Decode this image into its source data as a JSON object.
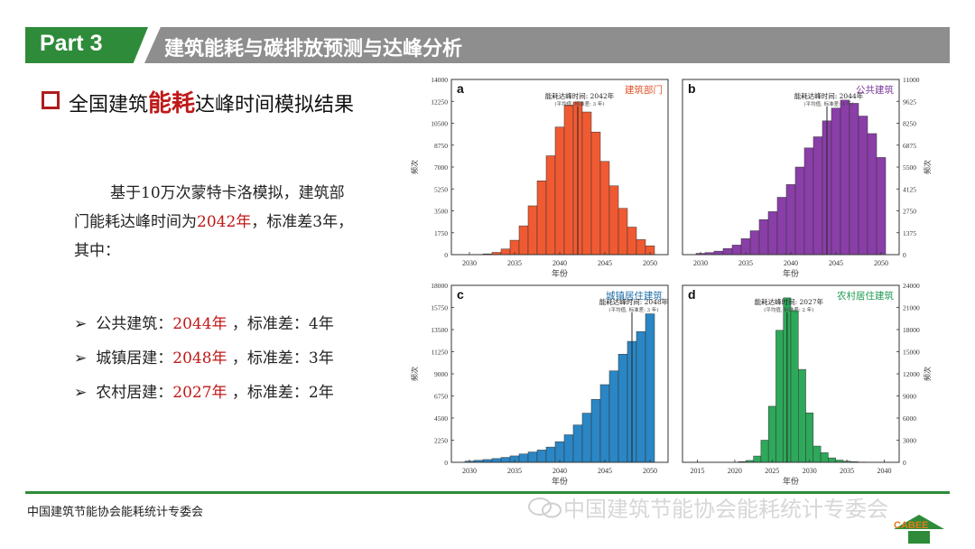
{
  "header": {
    "part": "Part 3",
    "title": "建筑能耗与碳排放预测与达峰分析"
  },
  "subtitle": {
    "prefix": "全国建筑",
    "highlight": "能耗",
    "suffix": "达峰时间模拟结果"
  },
  "paragraph": {
    "line1": "基于10万次蒙特卡洛模拟，建筑部",
    "line2_prefix": "门能耗达峰时间为",
    "line2_year": "2042年",
    "line2_suffix": "，标准差3年，",
    "line3": "其中："
  },
  "bullets": [
    {
      "label": "公共建筑：",
      "year": "2044年",
      "sd": " ，标准差：4年"
    },
    {
      "label": "城镇居建：",
      "year": "2048年",
      "sd": " ，标准差：3年"
    },
    {
      "label": "农村居建：",
      "year": "2027年",
      "sd": " ，标准差：2年"
    }
  ],
  "footer": {
    "org": "中国建筑节能协会能耗统计专委会",
    "watermark": "中国建筑节能协会能耗统计专委会",
    "logo_text": "CABEE"
  },
  "colors": {
    "green": "#2e8b3a",
    "gray": "#8e8e8e",
    "highlight_red": "#c01818"
  },
  "chart_data": [
    {
      "type": "bar",
      "panel": "a",
      "name": "建筑部门",
      "color": "#f05a32",
      "title_color": "#e0522a",
      "xlabel": "年份",
      "ylabel": "频次",
      "yaxis_side": "left",
      "xlim": [
        2028,
        2052
      ],
      "xticks": [
        2030,
        2035,
        2040,
        2045,
        2050
      ],
      "ylim": [
        0,
        14000
      ],
      "yticks": [
        0,
        1750,
        3500,
        5250,
        7000,
        8750,
        10500,
        12250,
        14000
      ],
      "x": [
        2031,
        2032,
        2033,
        2034,
        2035,
        2036,
        2037,
        2038,
        2039,
        2040,
        2041,
        2042,
        2043,
        2044,
        2045,
        2046,
        2047,
        2048,
        2049,
        2050
      ],
      "values": [
        20,
        60,
        180,
        450,
        1150,
        2300,
        3900,
        5900,
        7900,
        10200,
        11950,
        12200,
        11400,
        9800,
        7450,
        5500,
        3700,
        2200,
        1200,
        700
      ],
      "peak_year": 2042,
      "annotation": [
        "能耗达峰时间: 2042年",
        "(平均值, 标准差: 3 年)"
      ]
    },
    {
      "type": "bar",
      "panel": "b",
      "name": "公共建筑",
      "color": "#8a3ea8",
      "title_color": "#7a3a9a",
      "xlabel": "年份",
      "ylabel": "频次",
      "yaxis_side": "right",
      "xlim": [
        2028,
        2052
      ],
      "xticks": [
        2030,
        2035,
        2040,
        2045,
        2050
      ],
      "ylim": [
        0,
        11000
      ],
      "yticks": [
        0,
        1375,
        2750,
        4125,
        5500,
        6875,
        8250,
        9625,
        11000
      ],
      "x": [
        2030,
        2031,
        2032,
        2033,
        2034,
        2035,
        2036,
        2037,
        2038,
        2039,
        2040,
        2041,
        2042,
        2043,
        2044,
        2045,
        2046,
        2047,
        2048,
        2049,
        2050
      ],
      "values": [
        80,
        130,
        220,
        380,
        600,
        1000,
        1500,
        2200,
        2700,
        3600,
        4400,
        5500,
        6700,
        7400,
        8400,
        9200,
        9700,
        9500,
        8700,
        7600,
        6100
      ],
      "peak_year": 2044,
      "annotation": [
        "能耗达峰时间: 2044年",
        "(平均值, 标准差: 4 年)"
      ]
    },
    {
      "type": "bar",
      "panel": "c",
      "name": "城镇居住建筑",
      "color": "#2a86c4",
      "title_color": "#1f6fa8",
      "xlabel": "年份",
      "ylabel": "频次",
      "yaxis_side": "left",
      "xlim": [
        2028,
        2052
      ],
      "xticks": [
        2030,
        2035,
        2040,
        2045,
        2050
      ],
      "ylim": [
        0,
        18000
      ],
      "yticks": [
        0,
        2250,
        4500,
        6750,
        9000,
        11250,
        13500,
        15750,
        18000
      ],
      "x": [
        2030,
        2031,
        2032,
        2033,
        2034,
        2035,
        2036,
        2037,
        2038,
        2039,
        2040,
        2041,
        2042,
        2043,
        2044,
        2045,
        2046,
        2047,
        2048,
        2049,
        2050
      ],
      "values": [
        120,
        200,
        280,
        380,
        500,
        650,
        850,
        1050,
        1250,
        1550,
        2100,
        2800,
        3800,
        5000,
        6400,
        7900,
        9300,
        11000,
        12300,
        13300,
        15100
      ],
      "peak_year": 2048,
      "annotation": [
        "能耗达峰时间: 2048年",
        "(平均值, 标准差: 3 年)"
      ]
    },
    {
      "type": "bar",
      "panel": "d",
      "name": "农村居住建筑",
      "color": "#2ea85a",
      "title_color": "#1f9a52",
      "xlabel": "年份",
      "ylabel": "频次",
      "yaxis_side": "right",
      "xlim": [
        2013,
        2042
      ],
      "xticks": [
        2015,
        2020,
        2025,
        2030,
        2035,
        2040
      ],
      "ylim": [
        0,
        24000
      ],
      "yticks": [
        0,
        3000,
        6000,
        9000,
        12000,
        15000,
        18000,
        21000,
        24000
      ],
      "x": [
        2020,
        2021,
        2022,
        2023,
        2024,
        2025,
        2026,
        2027,
        2028,
        2029,
        2030,
        2031,
        2032,
        2033,
        2034,
        2035,
        2036,
        2037,
        2038
      ],
      "values": [
        30,
        100,
        250,
        850,
        3000,
        7600,
        17900,
        22300,
        20600,
        12600,
        6700,
        2200,
        1300,
        600,
        300,
        150,
        80,
        40,
        20
      ],
      "peak_year": 2027,
      "annotation": [
        "能耗达峰时间: 2027年",
        "(平均值, 标准差: 2 年)"
      ]
    }
  ]
}
